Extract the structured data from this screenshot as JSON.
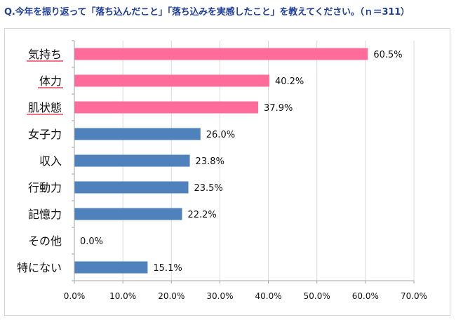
{
  "title": "Q.今年を振り返って「落ち込んだこと」「落ち込みを実感したこと」を教えてください。（ｎ＝311）",
  "colors": {
    "highlight": "#ff6b9a",
    "normal": "#4f81bd",
    "underline": "#e8485c",
    "grid": "#d9d9d9",
    "axis": "#a6a6a6",
    "title": "#1f3f99"
  },
  "chart_data": {
    "type": "bar",
    "orientation": "horizontal",
    "categories": [
      "気持ち",
      "体力",
      "肌状態",
      "女子力",
      "収入",
      "行動力",
      "記憶力",
      "その他",
      "特にない"
    ],
    "values": [
      60.5,
      40.2,
      37.9,
      26.0,
      23.8,
      23.5,
      22.2,
      0.0,
      15.1
    ],
    "value_labels": [
      "60.5%",
      "40.2%",
      "37.9%",
      "26.0%",
      "23.8%",
      "23.5%",
      "22.2%",
      "0.0%",
      "15.1%"
    ],
    "highlighted": [
      true,
      true,
      true,
      false,
      false,
      false,
      false,
      false,
      false
    ],
    "xlim": [
      0,
      70
    ],
    "xticks": [
      0,
      10,
      20,
      30,
      40,
      50,
      60,
      70
    ],
    "xtick_labels": [
      "0.0%",
      "10.0%",
      "20.0%",
      "30.0%",
      "40.0%",
      "50.0%",
      "60.0%",
      "70.0%"
    ],
    "grid": true,
    "legend": "none"
  }
}
